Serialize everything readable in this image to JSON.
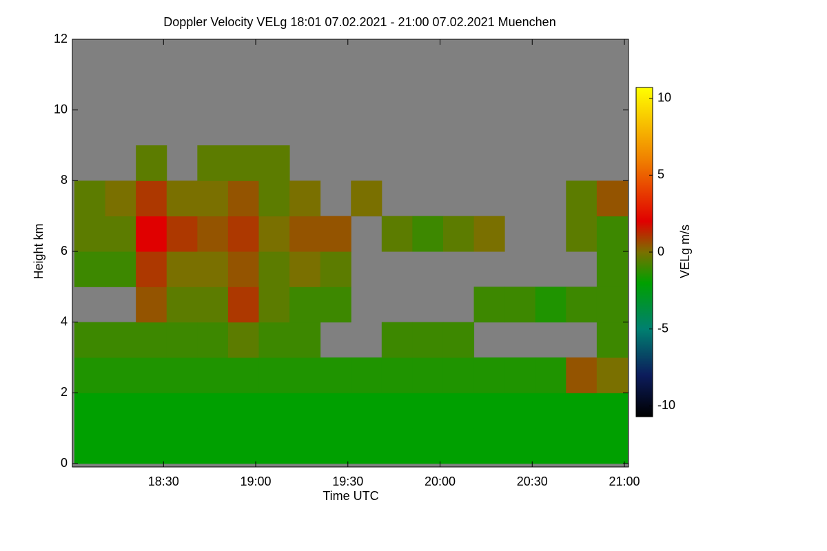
{
  "chart_data": {
    "type": "heatmap",
    "title": "Doppler Velocity VELg   18:01 07.02.2021 - 21:00 07.02.2021 Muenchen",
    "x_label": "Time UTC",
    "y_label": "Height km",
    "colorbar_label": "VELg m/s",
    "xlim": [
      "18:01",
      "21:00"
    ],
    "xticks": [
      "18:30",
      "19:00",
      "19:30",
      "20:00",
      "20:30",
      "21:00"
    ],
    "ylim": [
      0,
      12
    ],
    "yticks": [
      0,
      2,
      4,
      6,
      8,
      10,
      12
    ],
    "zlim": [
      -10.7,
      10.7
    ],
    "zticks": [
      -10,
      -5,
      0,
      5,
      10
    ],
    "background": "#808080",
    "colorscale": [
      [
        -10.7,
        "#000000"
      ],
      [
        -8,
        "#0c1c5c"
      ],
      [
        -5,
        "#008070"
      ],
      [
        -2,
        "#00a000"
      ],
      [
        0,
        "#7a7000"
      ],
      [
        2,
        "#e00000"
      ],
      [
        6,
        "#f08000"
      ],
      [
        10.7,
        "#ffff00"
      ]
    ],
    "x": [
      "18:06",
      "18:16",
      "18:26",
      "18:36",
      "18:46",
      "18:56",
      "19:06",
      "19:16",
      "19:26",
      "19:36",
      "19:46",
      "19:56",
      "20:06",
      "20:16",
      "20:26",
      "20:36",
      "20:46",
      "20:56"
    ],
    "y": [
      0.5,
      1.5,
      2.5,
      3.5,
      4.5,
      5.5,
      6.5,
      7.5,
      8.5,
      9.5,
      10.5,
      11.5
    ],
    "z": [
      [
        -2,
        -2,
        -1.5,
        -1,
        null,
        -1,
        -0.5,
        -0.5,
        null,
        null,
        null,
        null
      ],
      [
        -2,
        -2,
        -1.5,
        -1,
        null,
        -1,
        -0.5,
        0,
        null,
        null,
        null,
        null
      ],
      [
        -2,
        -2,
        -1.5,
        -1,
        0.5,
        1,
        2,
        1,
        -0.5,
        null,
        null,
        null
      ],
      [
        -2,
        -2,
        -1.5,
        -1,
        -0.5,
        0,
        1,
        0,
        null,
        null,
        null,
        null
      ],
      [
        -2,
        -2,
        -1.5,
        -1,
        -0.5,
        0,
        0.5,
        0,
        -0.5,
        null,
        null,
        null
      ],
      [
        -2,
        -2,
        -1.5,
        -0.5,
        1,
        0.5,
        1,
        0.5,
        -0.5,
        null,
        null,
        null
      ],
      [
        -2,
        -2,
        -1.5,
        -1,
        -0.5,
        -0.5,
        0,
        -0.5,
        -0.5,
        null,
        null,
        null
      ],
      [
        -2,
        -2,
        -1.5,
        -1,
        -1,
        0,
        0.5,
        0,
        null,
        null,
        null,
        null
      ],
      [
        -2,
        -2,
        -1.5,
        null,
        -1,
        -0.5,
        0.5,
        null,
        null,
        null,
        null,
        null
      ],
      [
        -2,
        -2,
        -1.5,
        null,
        null,
        null,
        null,
        0,
        null,
        null,
        null,
        null
      ],
      [
        -2,
        -2,
        -1.5,
        -1,
        null,
        null,
        -0.5,
        null,
        null,
        null,
        null,
        null
      ],
      [
        -2,
        -2,
        -1.5,
        -1,
        null,
        null,
        -1,
        null,
        null,
        null,
        null,
        null
      ],
      [
        -2,
        -2,
        -1.5,
        -1,
        null,
        null,
        -0.5,
        null,
        null,
        null,
        null,
        null
      ],
      [
        -2,
        -2,
        -1.5,
        null,
        -1,
        null,
        0,
        null,
        null,
        null,
        null,
        null
      ],
      [
        -2,
        -2,
        -1.5,
        null,
        -1,
        null,
        null,
        null,
        null,
        null,
        null,
        null
      ],
      [
        -2,
        -2,
        -1.5,
        null,
        -1.5,
        null,
        null,
        null,
        null,
        null,
        null,
        null
      ],
      [
        -2,
        -2,
        0.5,
        null,
        -1,
        null,
        -0.5,
        -0.5,
        null,
        null,
        null,
        null
      ],
      [
        -2,
        -2,
        0,
        -1,
        -1,
        -1,
        -1,
        0.5,
        null,
        null,
        null,
        null
      ]
    ]
  }
}
